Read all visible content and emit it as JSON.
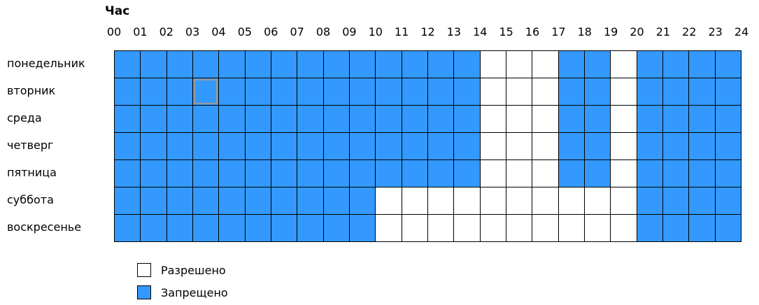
{
  "title": "Час",
  "hours": [
    "00",
    "01",
    "02",
    "03",
    "04",
    "05",
    "06",
    "07",
    "08",
    "09",
    "10",
    "11",
    "12",
    "13",
    "14",
    "15",
    "16",
    "17",
    "18",
    "19",
    "20",
    "21",
    "22",
    "23",
    "24"
  ],
  "days": [
    "понедельник",
    "вторник",
    "среда",
    "четверг",
    "пятница",
    "суббота",
    "воскресенье"
  ],
  "colors": {
    "denied": "#3399ff",
    "allowed": "#ffffff"
  },
  "schedule": [
    "DDDDDDDDDDDDDDAAADDADDDD",
    "DDDDDDDDDDDDDDAAADDADDDD",
    "DDDDDDDDDDDDDDAAADDADDDD",
    "DDDDDDDDDDDDDDAAADDADDDD",
    "DDDDDDDDDDDDDDAAADDADDDD",
    "DDDDDDDDDDAAAAAAAAAADDDD",
    "DDDDDDDDDDAAAAAAAAAADDDD"
  ],
  "schedule_legend": {
    "D": "Запрещено",
    "A": "Разрешено"
  },
  "focused_cell": {
    "day": "вторник",
    "hour": "03"
  },
  "legend": {
    "allowed_label": "Разрешено",
    "denied_label": "Запрещено"
  }
}
